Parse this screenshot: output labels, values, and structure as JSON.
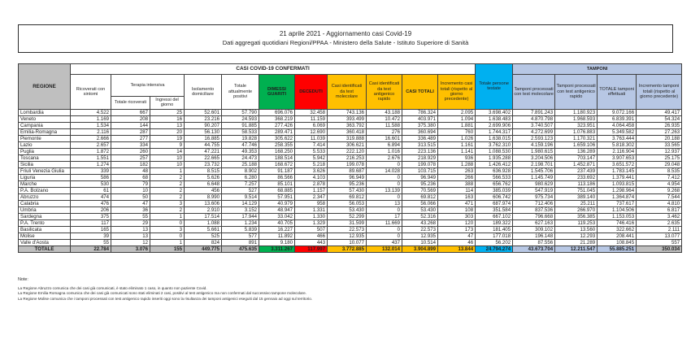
{
  "header": {
    "title": "21 aprile 2021 - Aggiornamento casi Covid-19",
    "subtitle": "Dati aggregati quotidiani Regioni/PPAA - Ministero della Salute - Istituto Superiore di Sanità"
  },
  "table": {
    "corner_label": "REGIONE",
    "band_casi": "CASI COVID-19 CONFERMATI",
    "band_tamponi": "TAMPONI",
    "group_terapia": "Terapia intensiva",
    "columns": [
      {
        "key": "ricoverati-con-sintomi",
        "label": "Ricoverati con sintomi"
      },
      {
        "key": "totale-ricoverati",
        "label": "Totale ricoverati"
      },
      {
        "key": "ingressi-del-giorno",
        "label": "Ingressi del giorno"
      },
      {
        "key": "isolamento-domiciliare",
        "label": "Isolamento domiciliare"
      },
      {
        "key": "totale-attualmente-positivi",
        "label": "Totale attualmente positivi"
      },
      {
        "key": "dimessi-guariti",
        "label": "DIMESSI GUARITI"
      },
      {
        "key": "deceduti",
        "label": "DECEDUTI"
      },
      {
        "key": "casi-test-molecolare",
        "label": "Casi identificati da test molecolare"
      },
      {
        "key": "casi-test-antigenico",
        "label": "Casi identificati da test antigenico rapido"
      },
      {
        "key": "casi-totali",
        "label": "CASI TOTALI"
      },
      {
        "key": "incremento-casi-totali",
        "label": "Incremento casi totali (rispetto al giorno precedente)"
      },
      {
        "key": "totale-persone-testate",
        "label": "Totale persone testate"
      },
      {
        "key": "tamponi-test-molecolare",
        "label": "Tamponi processati con test molecolare"
      },
      {
        "key": "tamponi-test-antigenico",
        "label": "Tamponi processati con test antigenico rapido"
      },
      {
        "key": "totale-tamponi",
        "label": "TOTALE tamponi effettuati"
      },
      {
        "key": "incremento-tamponi",
        "label": "Incremento tamponi totali (rispetto al giorno precedente)"
      }
    ],
    "rows": [
      {
        "regione": "Lombardia",
        "values": [
          "4.522",
          "667",
          "25",
          "52.601",
          "57.790",
          "696.076",
          "32.458",
          "743.136",
          "43.188",
          "786.324",
          "2.095",
          "3.698.402",
          "7.891.243",
          "1.180.923",
          "9.072.166",
          "49.417"
        ]
      },
      {
        "regione": "Veneto",
        "values": [
          "1.169",
          "208",
          "16",
          "23.216",
          "24.593",
          "368.219",
          "11.159",
          "393.499",
          "10.472",
          "403.971",
          "1.094",
          "1.638.483",
          "4.870.798",
          "1.968.593",
          "6.839.391",
          "54.324"
        ]
      },
      {
        "regione": "Campania",
        "values": [
          "1.534",
          "144",
          "13",
          "90.207",
          "91.885",
          "277.426",
          "6.069",
          "363.792",
          "11.588",
          "375.380",
          "1.881",
          "2.699.906",
          "3.740.507",
          "323.951",
          "4.064.458",
          "26.935"
        ]
      },
      {
        "regione": "Emilia-Romagna",
        "values": [
          "2.116",
          "287",
          "20",
          "56.130",
          "58.533",
          "289.471",
          "12.690",
          "360.418",
          "276",
          "360.694",
          "760",
          "1.744.317",
          "4.272.699",
          "1.076.883",
          "5.349.582",
          "27.263"
        ]
      },
      {
        "regione": "Piemonte",
        "values": [
          "2.666",
          "277",
          "19",
          "16.885",
          "19.828",
          "305.622",
          "11.039",
          "319.888",
          "16.601",
          "336.489",
          "1.026",
          "1.638.015",
          "2.593.123",
          "1.170.321",
          "3.763.444",
          "20.188"
        ]
      },
      {
        "regione": "Lazio",
        "values": [
          "2.657",
          "334",
          "9",
          "44.755",
          "47.746",
          "258.355",
          "7.414",
          "306.621",
          "6.894",
          "313.515",
          "1.161",
          "3.762.310",
          "4.159.196",
          "1.659.106",
          "5.818.302",
          "33.565"
        ]
      },
      {
        "regione": "Puglia",
        "values": [
          "1.872",
          "260",
          "14",
          "47.221",
          "49.353",
          "168.250",
          "5.533",
          "222.120",
          "1.016",
          "223.136",
          "1.141",
          "1.088.530",
          "1.980.615",
          "136.289",
          "2.116.904",
          "12.937"
        ]
      },
      {
        "regione": "Toscana",
        "values": [
          "1.551",
          "257",
          "10",
          "22.665",
          "24.473",
          "188.514",
          "5.942",
          "216.253",
          "2.676",
          "218.929",
          "936",
          "1.935.288",
          "3.204.506",
          "703.147",
          "3.907.653",
          "25.175"
        ]
      },
      {
        "regione": "Sicilia",
        "values": [
          "1.274",
          "182",
          "10",
          "23.732",
          "25.188",
          "168.672",
          "5.218",
          "199.078",
          "0",
          "199.078",
          "1.288",
          "1.426.412",
          "2.198.701",
          "1.452.871",
          "3.651.572",
          "29.048"
        ]
      },
      {
        "regione": "Friuli Venezia Giulia",
        "values": [
          "339",
          "48",
          "1",
          "8.515",
          "8.902",
          "91.187",
          "3.626",
          "89.687",
          "14.028",
          "103.715",
          "263",
          "636.928",
          "1.545.706",
          "237.439",
          "1.783.145",
          "8.535"
        ]
      },
      {
        "regione": "Liguria",
        "values": [
          "586",
          "68",
          "2",
          "5.626",
          "6.280",
          "86.566",
          "4.103",
          "96.949",
          "0",
          "96.949",
          "266",
          "566.533",
          "1.145.749",
          "233.692",
          "1.379.441",
          "7.412"
        ]
      },
      {
        "regione": "Marche",
        "values": [
          "530",
          "79",
          "2",
          "6.648",
          "7.257",
          "85.101",
          "2.878",
          "95.236",
          "0",
          "95.236",
          "388",
          "656.762",
          "980.629",
          "113.186",
          "1.093.815",
          "4.954"
        ]
      },
      {
        "regione": "P.A. Bolzano",
        "values": [
          "61",
          "10",
          "2",
          "456",
          "527",
          "68.885",
          "1.157",
          "57.430",
          "13.139",
          "70.569",
          "114",
          "385.039",
          "547.919",
          "751.045",
          "1.298.964",
          "9.268"
        ]
      },
      {
        "regione": "Abruzzo",
        "values": [
          "474",
          "50",
          "2",
          "8.990",
          "9.514",
          "57.951",
          "2.347",
          "69.812",
          "0",
          "69.812",
          "163",
          "606.742",
          "975.734",
          "389.140",
          "1.364.874",
          "7.544"
        ]
      },
      {
        "regione": "Calabria",
        "values": [
          "476",
          "47",
          "3",
          "13.606",
          "14.129",
          "40.979",
          "958",
          "56.053",
          "13",
          "56.066",
          "471",
          "687.974",
          "712.406",
          "25.211",
          "737.617",
          "4.810"
        ]
      },
      {
        "regione": "Umbria",
        "values": [
          "206",
          "36",
          "2",
          "2.910",
          "3.152",
          "48.947",
          "1.331",
          "53.430",
          "0",
          "53.430",
          "108",
          "351.584",
          "837.536",
          "266.970",
          "1.104.506",
          "6.817"
        ]
      },
      {
        "regione": "Sardegna",
        "values": [
          "375",
          "55",
          "1",
          "17.514",
          "17.944",
          "33.042",
          "1.330",
          "52.299",
          "17",
          "52.316",
          "303",
          "667.102",
          "796.668",
          "356.385",
          "1.153.053",
          "3.462"
        ]
      },
      {
        "regione": "P.A. Trento",
        "values": [
          "117",
          "29",
          "0",
          "1.088",
          "1.234",
          "40.705",
          "1.329",
          "31.599",
          "11.669",
          "43.268",
          "120",
          "189.322",
          "627.163",
          "119.253",
          "746.416",
          "2.635"
        ]
      },
      {
        "regione": "Basilicata",
        "values": [
          "165",
          "13",
          "3",
          "5.661",
          "5.839",
          "16.227",
          "507",
          "22.573",
          "0",
          "22.573",
          "173",
          "181.405",
          "309.102",
          "13.560",
          "322.662",
          "2.111"
        ]
      },
      {
        "regione": "Molise",
        "values": [
          "39",
          "13",
          "0",
          "525",
          "577",
          "11.892",
          "466",
          "12.935",
          "0",
          "12.935",
          "47",
          "177.018",
          "196.148",
          "12.293",
          "208.441",
          "13.077"
        ]
      },
      {
        "regione": "Valle d'Aosta",
        "values": [
          "55",
          "12",
          "1",
          "824",
          "891",
          "9.180",
          "443",
          "10.077",
          "437",
          "10.514",
          "46",
          "56.202",
          "87.556",
          "21.289",
          "108.845",
          "557"
        ]
      }
    ],
    "total": {
      "regione": "TOTALE",
      "values": [
        "22.784",
        "3.076",
        "155",
        "449.775",
        "475.635",
        "3.311.267",
        "117.997",
        "3.772.885",
        "132.014",
        "3.904.899",
        "13.844",
        "24.794.274",
        "43.673.704",
        "12.211.547",
        "55.885.251",
        "350.034"
      ]
    }
  },
  "notes": {
    "title": "Note:",
    "items": [
      "La Regione Abruzzo comunica che dei casi già comunicati, è stato eliminato 1 caso, in quanto non paziente Covid.",
      "La Regione Emilia Romagna comunica che dei casi già comunicati sono stati eliminati 2 casi, positivi al test antigenico ma non confermati dal successivo tampone molecolare.",
      "La Regione Molise comunica che i tamponi processati con test antigenico rapido inseriti oggi sono la risultanza dei tamponi antigenici eseguiti dal 15 gennaio ad oggi sul territorio."
    ]
  },
  "colors": {
    "green": "#00b050",
    "red": "#ff0000",
    "yellow": "#ffc000",
    "cyan": "#00b0f0",
    "periwinkle": "#b7c7e4",
    "gray": "#bfbfbf"
  }
}
